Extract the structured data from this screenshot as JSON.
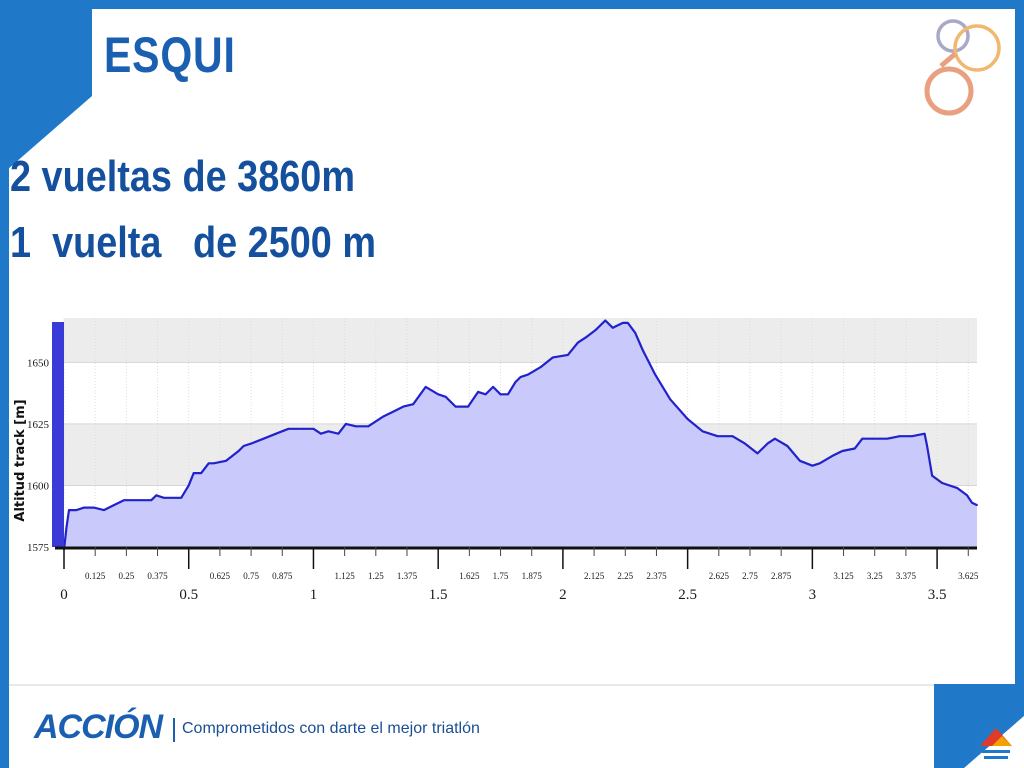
{
  "slide": {
    "title": "ESQUI",
    "laps": [
      {
        "text": "2 vueltas de 3860m"
      },
      {
        "text": "1  vuelta   de 2500 m"
      }
    ],
    "footer": {
      "logo": "ACCIÓN",
      "tagline": "Comprometidos con darte el mejor triatlón"
    }
  },
  "colors": {
    "frame_blue": "#1f78c8",
    "title_blue": "#1b5fb0",
    "profile_fill": "#c9c9fb",
    "profile_line": "#2222cc",
    "grid_band": "#ececec",
    "ring_gray": "#a8a8c8",
    "ring_orange": "#f0b870",
    "ring_salmon": "#e8a080"
  },
  "icons": [
    "triathlon-rings-icon",
    "triathlon-mountain-icon"
  ],
  "chart_data": {
    "type": "area",
    "title": "",
    "xlabel": "",
    "ylabel": "Altitud track [m]",
    "xlim": [
      0,
      3.66
    ],
    "ylim": [
      1575,
      1668
    ],
    "major_x_ticks": [
      0,
      0.5,
      1,
      1.5,
      2,
      2.5,
      3,
      3.5
    ],
    "major_x_tick_labels": [
      "0",
      "0.5",
      "1",
      "1.5",
      "2",
      "2.5",
      "3",
      "3.5"
    ],
    "minor_x_ticks": [
      0.125,
      0.25,
      0.375,
      0.625,
      0.75,
      0.875,
      1.125,
      1.25,
      1.375,
      1.625,
      1.75,
      1.875,
      2.125,
      2.25,
      2.375,
      2.625,
      2.75,
      2.875,
      3.125,
      3.25,
      3.375,
      3.625
    ],
    "minor_x_tick_labels": [
      "0.125",
      "0.25",
      "0.375",
      "0.625",
      "0.75",
      "0.875",
      "1.125",
      "1.25",
      "1.375",
      "1.625",
      "1.75",
      "1.875",
      "2.125",
      "2.25",
      "2.375",
      "2.625",
      "2.75",
      "2.875",
      "3.125",
      "3.25",
      "3.375",
      "3.625"
    ],
    "y_ticks": [
      1575,
      1600,
      1625,
      1650
    ],
    "y_tick_labels": [
      "1575",
      "1600",
      "1625",
      "1650"
    ],
    "grid": true,
    "series": [
      {
        "x": [
          0,
          0.01,
          0.02,
          0.05,
          0.08,
          0.12,
          0.16,
          0.2,
          0.24,
          0.26,
          0.3,
          0.35,
          0.37,
          0.4,
          0.47,
          0.5,
          0.52,
          0.55,
          0.58,
          0.6,
          0.65,
          0.7,
          0.72,
          0.75,
          0.8,
          0.85,
          0.9,
          0.93,
          0.96,
          1.0,
          1.03,
          1.06,
          1.1,
          1.13,
          1.17,
          1.22,
          1.28,
          1.32,
          1.36,
          1.4,
          1.45,
          1.5,
          1.53,
          1.57,
          1.62,
          1.66,
          1.69,
          1.72,
          1.75,
          1.78,
          1.81,
          1.83,
          1.86,
          1.91,
          1.96,
          2.02,
          2.06,
          2.09,
          2.13,
          2.17,
          2.2,
          2.24,
          2.26,
          2.29,
          2.32,
          2.37,
          2.43,
          2.5,
          2.56,
          2.62,
          2.68,
          2.73,
          2.78,
          2.82,
          2.85,
          2.9,
          2.95,
          3.0,
          3.03,
          3.08,
          3.12,
          3.17,
          3.2,
          3.24,
          3.3,
          3.35,
          3.4,
          3.45,
          3.46,
          3.48,
          3.52,
          3.58,
          3.62,
          3.64,
          3.66
        ],
        "y": [
          1574,
          1583,
          1590,
          1590,
          1591,
          1591,
          1590,
          1592,
          1594,
          1594,
          1594,
          1594,
          1596,
          1595,
          1595,
          1600,
          1605,
          1605,
          1609,
          1609,
          1610,
          1614,
          1616,
          1617,
          1619,
          1621,
          1623,
          1623,
          1623,
          1623,
          1621,
          1622,
          1621,
          1625,
          1624,
          1624,
          1628,
          1630,
          1632,
          1633,
          1640,
          1637,
          1636,
          1632,
          1632,
          1638,
          1637,
          1640,
          1637,
          1637,
          1642,
          1644,
          1645,
          1648,
          1652,
          1653,
          1658,
          1660,
          1663,
          1667,
          1664,
          1666,
          1666,
          1662,
          1655,
          1645,
          1635,
          1627,
          1622,
          1620,
          1620,
          1617,
          1613,
          1617,
          1619,
          1616,
          1610,
          1608,
          1609,
          1612,
          1614,
          1615,
          1619,
          1619,
          1619,
          1620,
          1620,
          1621,
          1616,
          1604,
          1601,
          1599,
          1596,
          1593,
          1592
        ]
      }
    ]
  }
}
